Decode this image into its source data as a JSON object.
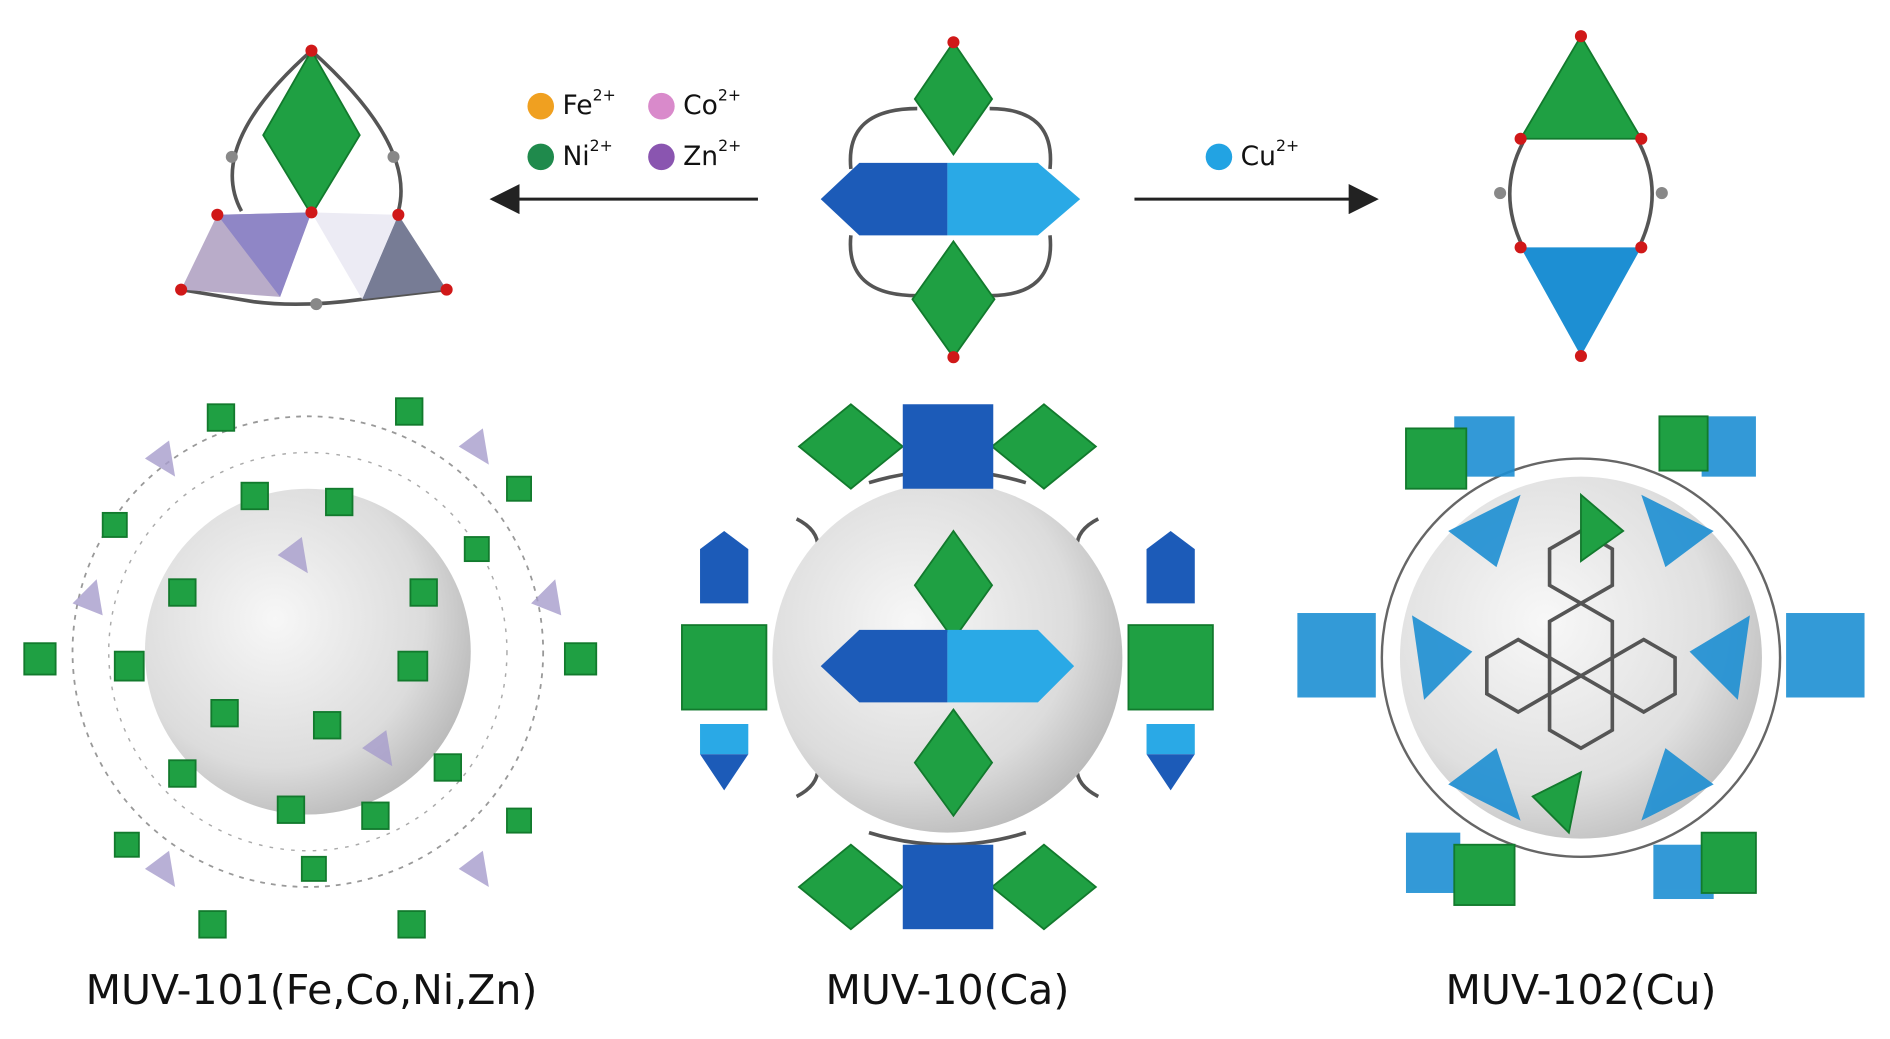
{
  "legend_left": [
    {
      "element": "Fe",
      "charge": "2+",
      "color": "#f0a020"
    },
    {
      "element": "Co",
      "charge": "2+",
      "color": "#d98acb"
    },
    {
      "element": "Ni",
      "charge": "2+",
      "color": "#1f8a4c"
    },
    {
      "element": "Zn",
      "charge": "2+",
      "color": "#8a55b0"
    }
  ],
  "legend_right": [
    {
      "element": "Cu",
      "charge": "2+",
      "color": "#22a3e3"
    }
  ],
  "captions": [
    "MUV-101(Fe,Co,Ni,Zn)",
    "MUV-10(Ca)",
    "MUV-102(Cu)"
  ]
}
